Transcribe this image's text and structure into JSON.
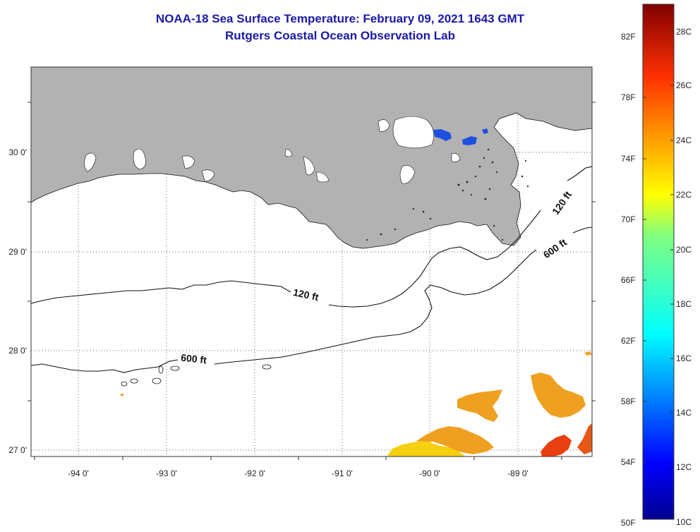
{
  "title": {
    "line1": "NOAA-18 Sea Surface Temperature:  February 09, 2021 1643 GMT",
    "line2": "Rutgers Coastal Ocean Observation Lab"
  },
  "map": {
    "lon_ticks": [
      {
        "value": -94,
        "label": "-94 0'"
      },
      {
        "value": -93,
        "label": "-93 0'"
      },
      {
        "value": -92,
        "label": "-92 0'"
      },
      {
        "value": -91,
        "label": "-91 0'"
      },
      {
        "value": -90,
        "label": "-90 0'"
      },
      {
        "value": -89,
        "label": "-89 0'"
      }
    ],
    "lat_ticks": [
      {
        "value": 30,
        "label": "30 0'"
      },
      {
        "value": 29,
        "label": "29 0'"
      },
      {
        "value": 28,
        "label": "28 0'"
      },
      {
        "value": 27,
        "label": "27 0'"
      }
    ],
    "lon_range": [
      -94.5,
      -88.0
    ],
    "lat_range": [
      26.93,
      29.89
    ],
    "contour_labels": [
      {
        "text": "120 ft"
      },
      {
        "text": "600 ft"
      },
      {
        "text": "120 ft"
      },
      {
        "text": "600 ft"
      }
    ],
    "colors": {
      "land": "#b2b2b2",
      "cloud": "#ffffff",
      "sst_cold": "#1e50e0",
      "sst_warm": "#f0a020",
      "sst_yellow": "#f5d010",
      "sst_hot": "#e84010"
    }
  },
  "colorbar": {
    "fahrenheit_labels": [
      "82F",
      "78F",
      "74F",
      "70F",
      "66F",
      "62F",
      "58F",
      "54F",
      "50F"
    ],
    "celsius_labels": [
      "28C",
      "26C",
      "24C",
      "22C",
      "20C",
      "18C",
      "16C",
      "14C",
      "12C",
      "10C"
    ],
    "range_c": [
      10,
      29.5
    ]
  }
}
